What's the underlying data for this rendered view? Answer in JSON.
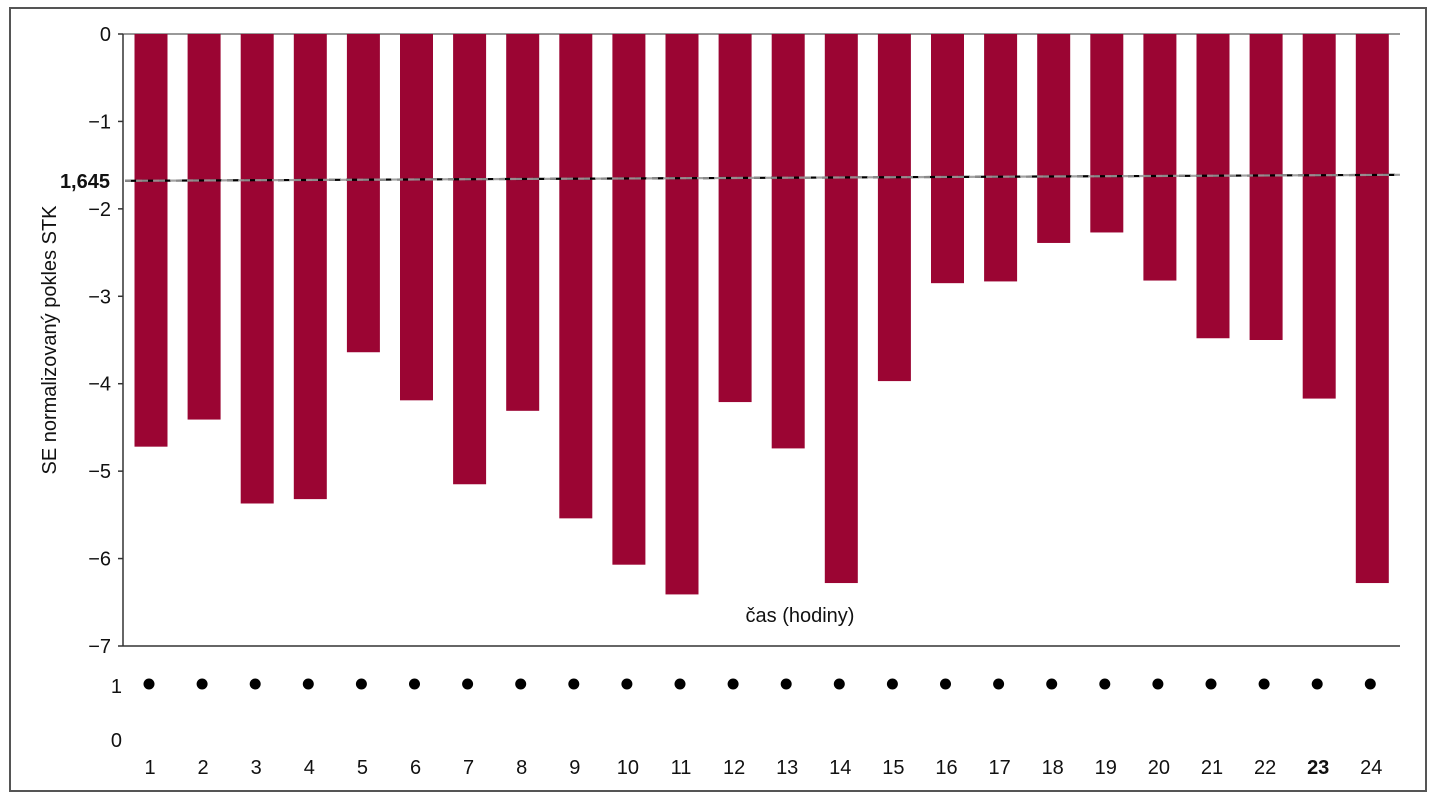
{
  "chart_data": {
    "type": "bar",
    "title": "",
    "xlabel": "čas (hodiny)",
    "ylabel": "SE normalizovaný pokles STK",
    "ylim": [
      -7,
      0
    ],
    "yticks": [
      0,
      -1,
      -2,
      -3,
      -4,
      -5,
      -6,
      -7
    ],
    "ytick_labels": [
      "0",
      "−1",
      "−2",
      "−3",
      "−4",
      "−5",
      "−6",
      "−7"
    ],
    "threshold": {
      "label": "1,645",
      "value": -1.645
    },
    "categories": [
      "1",
      "2",
      "3",
      "4",
      "5",
      "6",
      "7",
      "8",
      "9",
      "10",
      "11",
      "12",
      "13",
      "14",
      "15",
      "16",
      "17",
      "18",
      "19",
      "20",
      "21",
      "22",
      "23",
      "24"
    ],
    "series": [
      {
        "values": [
          -4.72,
          -4.41,
          -5.37,
          -5.32,
          -3.64,
          -4.19,
          -5.15,
          -4.31,
          -5.54,
          -6.07,
          -6.41,
          -4.21,
          -4.74,
          -6.28,
          -3.97,
          -2.85,
          -2.83,
          -2.39,
          -2.27,
          -2.82,
          -3.48,
          -3.5,
          -4.17,
          -6.28
        ],
        "color": "#9b0533"
      }
    ],
    "indicator": {
      "ytick_labels": [
        "1",
        "0"
      ],
      "values": [
        1,
        1,
        1,
        1,
        1,
        1,
        1,
        1,
        1,
        1,
        1,
        1,
        1,
        1,
        1,
        1,
        1,
        1,
        1,
        1,
        1,
        1,
        1,
        1
      ]
    },
    "grid": false,
    "legend": "none"
  }
}
